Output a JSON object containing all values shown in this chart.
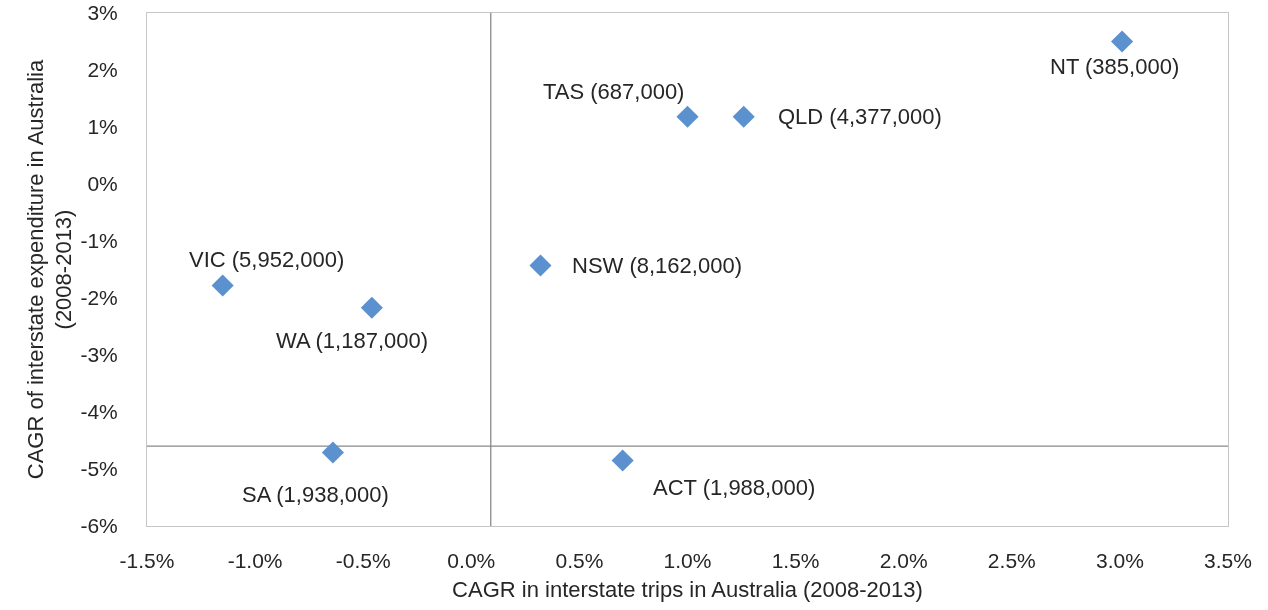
{
  "chart_data": {
    "type": "scatter",
    "xlabel": "CAGR in interstate trips in Australia (2008-2013)",
    "ylabel": "CAGR of interstate expenditure in Australia\n(2008-2013)",
    "x": [
      0.32,
      -1.15,
      1.26,
      -0.46,
      -0.64,
      1.0,
      0.7,
      3.01
    ],
    "values": [
      -1.43,
      -1.78,
      1.18,
      -2.17,
      -4.71,
      1.18,
      -4.85,
      2.5
    ],
    "color": "#5b91cf",
    "marker": "diamond",
    "xlim": [
      -1.5,
      3.5
    ],
    "xticks": [
      {
        "value": -1.5,
        "label": "-1.5%"
      },
      {
        "value": -1.0,
        "label": "-1.0%"
      },
      {
        "value": -0.5,
        "label": "-0.5%"
      },
      {
        "value": 0.0,
        "label": "0.0%"
      },
      {
        "value": 0.5,
        "label": "0.5%"
      },
      {
        "value": 1.0,
        "label": "1.0%"
      },
      {
        "value": 1.5,
        "label": "1.5%"
      },
      {
        "value": 2.0,
        "label": "2.0%"
      },
      {
        "value": 2.5,
        "label": "2.5%"
      },
      {
        "value": 3.0,
        "label": "3.0%"
      },
      {
        "value": 3.5,
        "label": "3.5%"
      }
    ],
    "ylim": [
      -6,
      3
    ],
    "yticks": [
      {
        "value": 3,
        "label": "3%"
      },
      {
        "value": 2,
        "label": "2%"
      },
      {
        "value": 1,
        "label": "1%"
      },
      {
        "value": 0,
        "label": "0%"
      },
      {
        "value": -1,
        "label": "-1%"
      },
      {
        "value": -2,
        "label": "-2%"
      },
      {
        "value": -3,
        "label": "-3%"
      },
      {
        "value": -4,
        "label": "-4%"
      },
      {
        "value": -5,
        "label": "-5%"
      },
      {
        "value": -6,
        "label": "-6%"
      }
    ],
    "ref_lines": [
      {
        "axis": "x",
        "value": 0.09,
        "color": "#898989"
      },
      {
        "axis": "y",
        "value": -4.6,
        "color": "#898989"
      }
    ],
    "annotations": [
      {
        "text": "NSW (8,162,000)",
        "x": 0.32,
        "y": -1.43
      },
      {
        "text": "VIC (5,952,000)",
        "x": -1.15,
        "y": -1.78
      },
      {
        "text": "QLD (4,377,000)",
        "x": 1.26,
        "y": 1.18
      },
      {
        "text": "WA (1,187,000)",
        "x": -0.46,
        "y": -2.17
      },
      {
        "text": "SA (1,938,000)",
        "x": -0.64,
        "y": -4.71
      },
      {
        "text": "TAS (687,000)",
        "x": 1.0,
        "y": 1.18
      },
      {
        "text": "ACT (1,988,000)",
        "x": 0.7,
        "y": -4.85
      },
      {
        "text": "NT (385,000)",
        "x": 3.01,
        "y": 2.5
      }
    ]
  }
}
